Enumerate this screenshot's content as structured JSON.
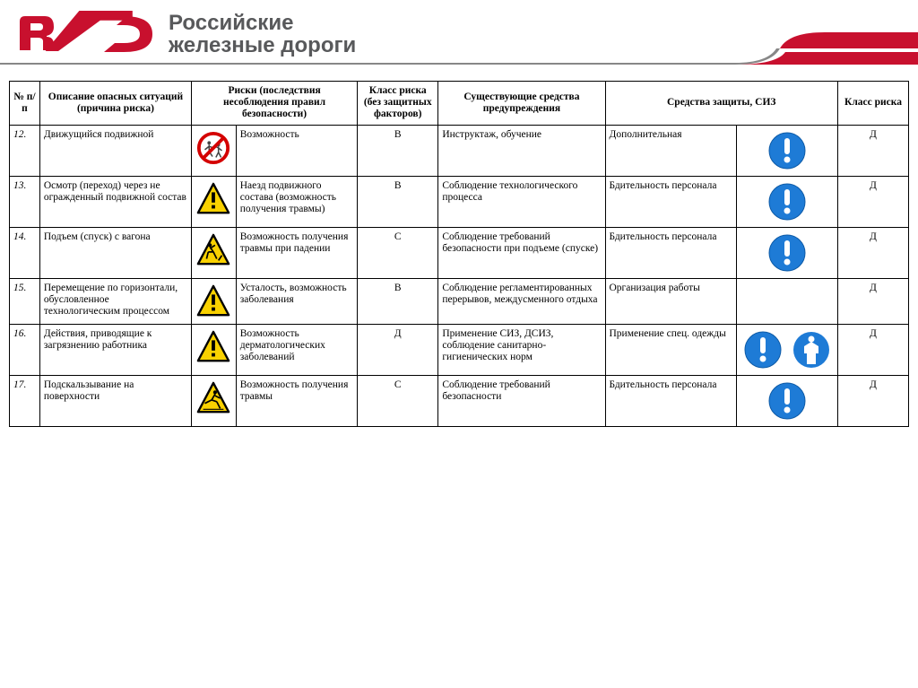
{
  "brand": {
    "line1": "Российские",
    "line2": "железные дороги",
    "logo_color": "#c8102e",
    "title_color": "#58595b",
    "title_fontsize": 24
  },
  "stripe": {
    "red": "#c8102e",
    "grey": "#878787"
  },
  "table": {
    "headers": {
      "num": "№ п/п",
      "desc": "Описание опасных ситуаций (причина риска)",
      "risk": "Риски (последствия несоблюдения правил безопасности)",
      "class1": "Класс риска (без защитных факторов)",
      "warn": "Существующие средства предупреждения",
      "prot": "Средства защиты, СИЗ",
      "class2": "Класс риска"
    },
    "icon_colors": {
      "warning_fill": "#f9d100",
      "warning_stroke": "#000000",
      "prohibition_ring": "#d40000",
      "mandatory_fill": "#1e7bd6",
      "mandatory_symbol": "#ffffff"
    },
    "rows": [
      {
        "num": "12.",
        "desc": "Движущийся подвижной",
        "hazard_icon": "prohibition",
        "risk": "Возможность",
        "class1": "В",
        "warn": "Инструктаж, обучение",
        "prot": "Дополнительная",
        "ppe_icons": [
          "mandatory-exclaim"
        ],
        "class2": "Д"
      },
      {
        "num": "13.",
        "desc": "Осмотр (переход) через не огражденный подвижной состав",
        "hazard_icon": "warning-generic",
        "risk": "Наезд подвижного состава (возможность получения травмы)",
        "class1": "В",
        "warn": "Соблюдение технологического процесса",
        "prot": "Бдительность персонала",
        "ppe_icons": [
          "mandatory-exclaim"
        ],
        "class2": "Д"
      },
      {
        "num": "14.",
        "desc": "Подъем (спуск) с вагона",
        "hazard_icon": "warning-fall",
        "risk": "Возможность получения травмы при падении",
        "class1": "С",
        "warn": "Соблюдение требований безопасности при подъеме (спуске)",
        "prot": "Бдительность персонала",
        "ppe_icons": [
          "mandatory-exclaim"
        ],
        "class2": "Д"
      },
      {
        "num": "15.",
        "desc": "Перемещение по горизонтали, обусловленное технологическим процессом",
        "hazard_icon": "warning-generic",
        "risk": "Усталость, возможность заболевания",
        "class1": "В",
        "warn": "Соблюдение регламентированных перерывов, междусменного отдыха",
        "prot": "Организация работы",
        "ppe_icons": [],
        "class2": "Д"
      },
      {
        "num": "16.",
        "desc": "Действия, приводящие к загрязнению работника",
        "hazard_icon": "warning-generic",
        "risk": "Возможность дерматологических заболеваний",
        "class1": "Д",
        "warn": "Применение СИЗ, ДСИЗ, соблюдение санитарно-гигиенических норм",
        "prot": "Применение спец. одежды",
        "ppe_icons": [
          "mandatory-exclaim",
          "mandatory-suit"
        ],
        "class2": "Д"
      },
      {
        "num": "17.",
        "desc": "Подскальзывание на поверхности",
        "hazard_icon": "warning-slip",
        "risk": "Возможность получения травмы",
        "class1": "С",
        "warn": "Соблюдение требований безопасности",
        "prot": "Бдительность персонала",
        "ppe_icons": [
          "mandatory-exclaim"
        ],
        "class2": "Д"
      }
    ]
  }
}
